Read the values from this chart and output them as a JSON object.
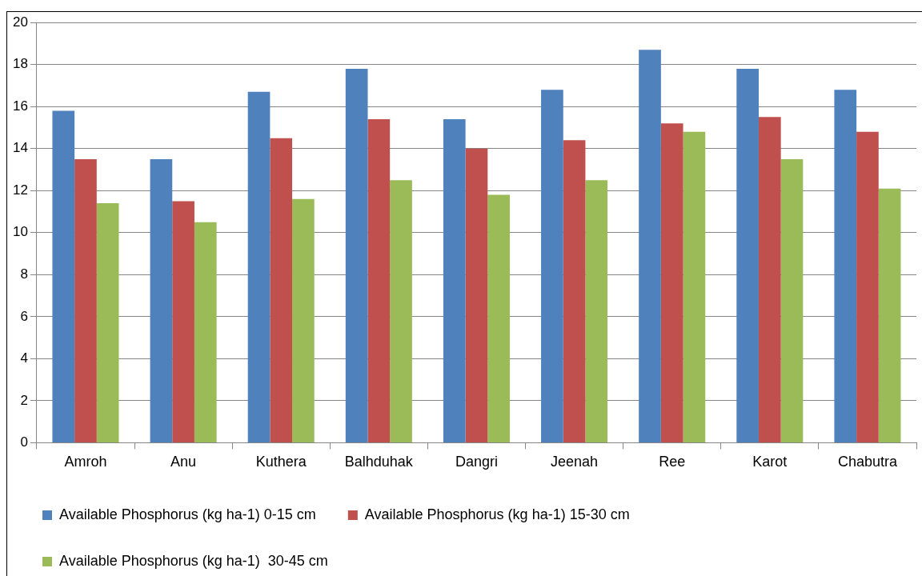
{
  "chart_data": {
    "type": "bar",
    "categories": [
      "Amroh",
      "Anu",
      "Kuthera",
      "Balhduhak",
      "Dangri",
      "Jeenah",
      "Ree",
      "Karot",
      "Chabutra"
    ],
    "series": [
      {
        "name": "Available Phosphorus (kg ha-1) 0-15 cm",
        "color": "#4f81bd",
        "values": [
          15.8,
          13.5,
          16.7,
          17.8,
          15.4,
          16.8,
          18.7,
          17.8,
          16.8
        ]
      },
      {
        "name": "Available Phosphorus (kg ha-1) 15-30 cm",
        "color": "#c0504d",
        "values": [
          13.5,
          11.5,
          14.5,
          15.4,
          14.0,
          14.4,
          15.2,
          15.5,
          14.8
        ]
      },
      {
        "name": "Available Phosphorus (kg ha-1)  30-45 cm",
        "color": "#9bbb59",
        "values": [
          11.4,
          10.5,
          11.6,
          12.5,
          11.8,
          12.5,
          14.8,
          13.5,
          12.1
        ]
      }
    ],
    "ylim": [
      0,
      20
    ],
    "yticks": [
      0,
      2,
      4,
      6,
      8,
      10,
      12,
      14,
      16,
      18,
      20
    ],
    "grid": "y",
    "legend": "bottom"
  }
}
